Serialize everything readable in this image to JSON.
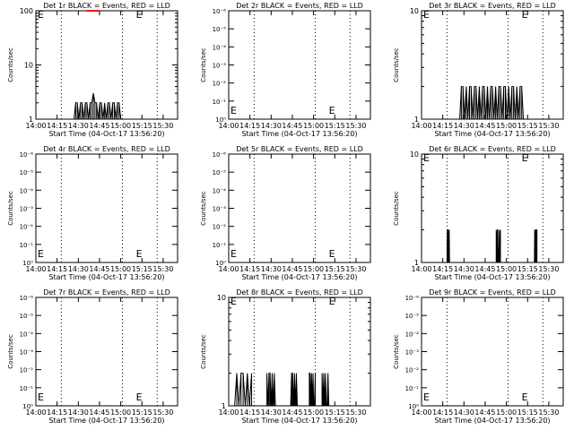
{
  "page": {
    "background": "#ffffff",
    "ink": "#000000",
    "lld_color": "#ff0000"
  },
  "chart_data": [
    {
      "type": "line",
      "title": "Det 1r BLACK = Events, RED = LLD",
      "xlabel": "Start Time (04-Oct-17 13:56:20)",
      "ylabel": "Counts/sec",
      "x_range_min": [
        14.0,
        15.67
      ],
      "x_ticks": [
        "14:00",
        "14:15",
        "14:30",
        "14:45",
        "15:00",
        "15:15",
        "15:30"
      ],
      "yscale": "log",
      "ylim": [
        1,
        100
      ],
      "y_ticks": [
        "1",
        "10",
        "100"
      ],
      "markers": [
        "E",
        "E"
      ],
      "series": [
        {
          "color": "#000000",
          "x_min": [
            14.45,
            15.0
          ],
          "values_pattern": [
            1,
            2,
            2,
            1,
            2,
            2,
            1,
            2,
            2,
            1,
            2,
            2,
            3,
            2,
            2,
            1,
            2,
            2,
            1,
            2,
            1,
            2,
            2,
            1,
            2,
            2,
            1,
            2,
            2,
            1
          ],
          "peak": 3
        },
        {
          "color": "#ff0000",
          "x_min": [
            14.6,
            14.75
          ],
          "values_pattern": [
            100,
            100
          ]
        }
      ]
    },
    {
      "type": "line",
      "title": "Det 2r BLACK = Events, RED = LLD",
      "xlabel": "Start Time (04-Oct-17 13:56:20)",
      "ylabel": "Counts/sec",
      "x_ticks": [
        "14:00",
        "14:15",
        "14:30",
        "14:45",
        "15:00",
        "15:15",
        "15:30"
      ],
      "yscale": "log",
      "y_ticks": [
        "10⁰",
        "10⁻¹",
        "10⁻²",
        "10⁻³",
        "10⁻⁴",
        "10⁻⁵",
        "10⁻⁶"
      ],
      "markers": [
        "E",
        "E"
      ],
      "series": []
    },
    {
      "type": "line",
      "title": "Det 3r BLACK = Events, RED = LLD",
      "xlabel": "Start Time (04-Oct-17 13:56:20)",
      "ylabel": "Counts/sec",
      "x_ticks": [
        "14:00",
        "14:15",
        "14:30",
        "14:45",
        "15:00",
        "15:15",
        "15:30"
      ],
      "yscale": "log",
      "ylim": [
        1,
        10
      ],
      "y_ticks": [
        "1",
        "10"
      ],
      "markers": [
        "E",
        "E"
      ],
      "series": [
        {
          "color": "#000000",
          "x_min": [
            14.45,
            15.2
          ],
          "values_pattern": [
            1,
            2,
            2,
            1,
            2,
            1,
            2,
            2,
            1,
            2,
            2,
            1,
            2,
            1,
            2,
            2,
            1,
            2,
            1,
            2,
            2,
            1,
            2,
            1,
            2,
            2,
            1,
            2,
            2,
            1,
            2,
            1,
            2,
            2,
            1,
            2,
            1,
            2,
            2,
            1
          ]
        }
      ]
    },
    {
      "type": "line",
      "title": "Det 4r BLACK = Events, RED = LLD",
      "xlabel": "Start Time (04-Oct-17 13:56:20)",
      "ylabel": "Counts/sec",
      "x_ticks": [
        "14:00",
        "14:15",
        "14:30",
        "14:45",
        "15:00",
        "15:15",
        "15:30"
      ],
      "yscale": "log",
      "y_ticks": [
        "10⁰",
        "10⁻¹",
        "10⁻²",
        "10⁻³",
        "10⁻⁴",
        "10⁻⁵",
        "10⁻⁶"
      ],
      "markers": [
        "E",
        "E"
      ],
      "series": []
    },
    {
      "type": "line",
      "title": "Det 5r BLACK = Events, RED = LLD",
      "xlabel": "Start Time (04-Oct-17 13:56:20)",
      "ylabel": "Counts/sec",
      "x_ticks": [
        "14:00",
        "14:15",
        "14:30",
        "14:45",
        "15:00",
        "15:15",
        "15:30"
      ],
      "yscale": "log",
      "y_ticks": [
        "10⁰",
        "10⁻¹",
        "10⁻²",
        "10⁻³",
        "10⁻⁴",
        "10⁻⁵",
        "10⁻⁶"
      ],
      "markers": [
        "E",
        "E"
      ],
      "series": []
    },
    {
      "type": "line",
      "title": "Det 6r BLACK = Events, RED = LLD",
      "xlabel": "Start Time (04-Oct-17 13:56:20)",
      "ylabel": "Counts/sec",
      "x_ticks": [
        "14:00",
        "14:15",
        "14:30",
        "14:45",
        "15:00",
        "15:15",
        "15:30"
      ],
      "yscale": "log",
      "ylim": [
        1,
        10
      ],
      "y_ticks": [
        "1",
        "10"
      ],
      "markers": [
        "E",
        "E"
      ],
      "series": [
        {
          "color": "#000000",
          "bursts_min": [
            [
              14.3,
              14.33
            ],
            [
              14.88,
              14.93
            ],
            [
              15.33,
              15.36
            ]
          ],
          "values_pattern": [
            1,
            2,
            1,
            2,
            2,
            1
          ]
        }
      ]
    },
    {
      "type": "line",
      "title": "Det 7r BLACK = Events, RED = LLD",
      "xlabel": "Start Time (04-Oct-17 13:56:20)",
      "ylabel": "Counts/sec",
      "x_ticks": [
        "14:00",
        "14:15",
        "14:30",
        "14:45",
        "15:00",
        "15:15",
        "15:30"
      ],
      "yscale": "log",
      "y_ticks": [
        "10⁰",
        "10⁻¹",
        "10⁻²",
        "10⁻³",
        "10⁻⁴",
        "10⁻⁵",
        "10⁻⁶"
      ],
      "markers": [
        "E",
        "E"
      ],
      "series": []
    },
    {
      "type": "line",
      "title": "Det 8r BLACK = Events, RED = LLD",
      "xlabel": "Start Time (04-Oct-17 13:56:20)",
      "ylabel": "Counts/sec",
      "x_ticks": [
        "14:00",
        "14:15",
        "14:30",
        "14:45",
        "15:00",
        "15:15",
        "15:30"
      ],
      "yscale": "log",
      "ylim": [
        1,
        10
      ],
      "y_ticks": [
        "1",
        "10"
      ],
      "markers": [
        "E",
        "E"
      ],
      "series": [
        {
          "color": "#000000",
          "bursts_min": [
            [
              14.07,
              14.27
            ],
            [
              14.45,
              14.55
            ],
            [
              14.73,
              14.82
            ],
            [
              14.95,
              15.02
            ],
            [
              15.1,
              15.18
            ]
          ],
          "values_pattern": [
            1,
            2,
            1,
            2,
            2,
            1,
            2,
            1,
            2,
            1
          ]
        }
      ]
    },
    {
      "type": "line",
      "title": "Det 9r BLACK = Events, RED = LLD",
      "xlabel": "Start Time (04-Oct-17 13:56:20)",
      "ylabel": "Counts/sec",
      "x_ticks": [
        "14:00",
        "14:15",
        "14:30",
        "14:45",
        "15:00",
        "15:15",
        "15:30"
      ],
      "yscale": "log",
      "y_ticks": [
        "10⁰",
        "10⁻¹",
        "10⁻²",
        "10⁻³",
        "10⁻⁴",
        "10⁻⁵",
        "10⁻⁶"
      ],
      "markers": [
        "E",
        "E"
      ],
      "series": []
    }
  ]
}
